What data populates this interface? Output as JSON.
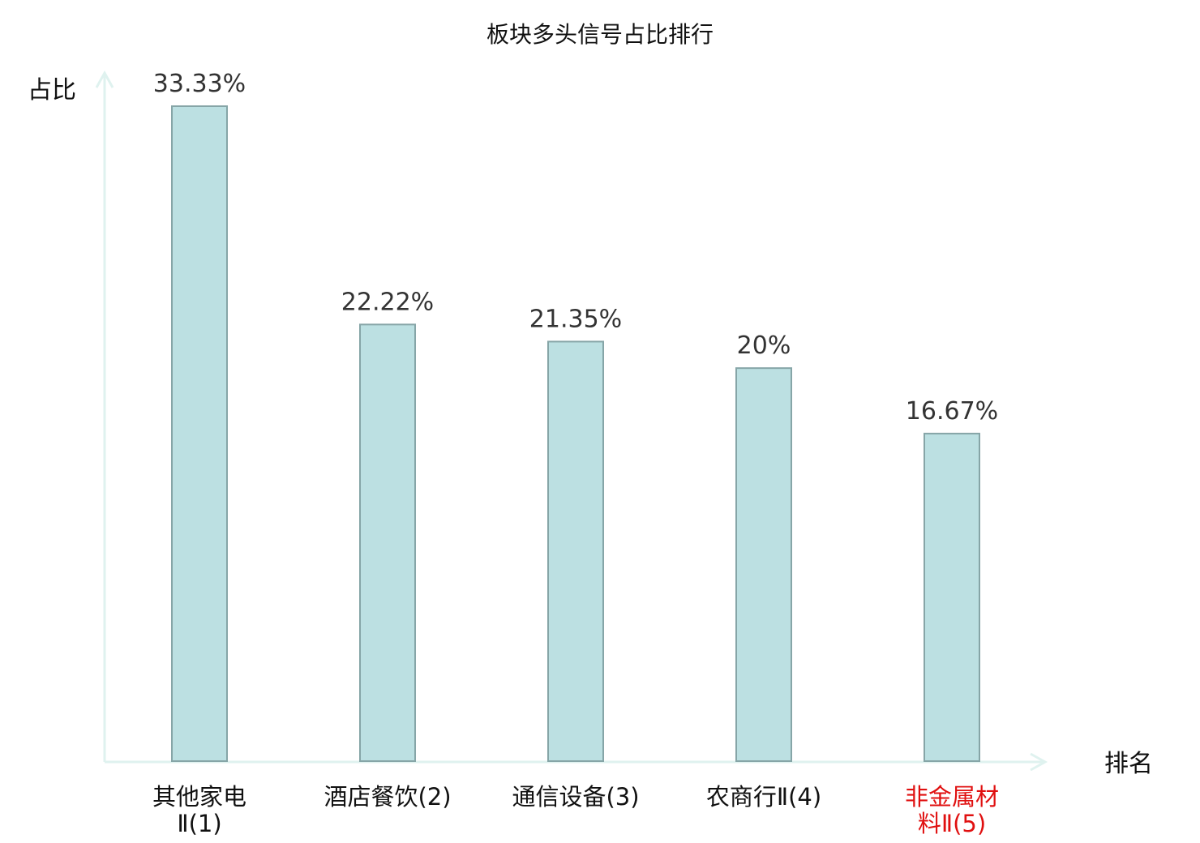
{
  "chart_data": {
    "type": "bar",
    "title": "板块多头信号占比排行",
    "xlabel": "排名",
    "ylabel": "占比",
    "ylim": [
      0,
      33.33
    ],
    "grid": false,
    "legend": "none",
    "categories": [
      {
        "lines": [
          "其他家电",
          "Ⅱ(1)"
        ],
        "highlight": false
      },
      {
        "lines": [
          "酒店餐饮(2)"
        ],
        "highlight": false
      },
      {
        "lines": [
          "通信设备(3)"
        ],
        "highlight": false
      },
      {
        "lines": [
          "农商行Ⅱ(4)"
        ],
        "highlight": false
      },
      {
        "lines": [
          "非金属材",
          "料Ⅱ(5)"
        ],
        "highlight": true
      }
    ],
    "values": [
      33.33,
      22.22,
      21.35,
      20,
      16.67
    ],
    "value_labels": [
      "33.33%",
      "22.22%",
      "21.35%",
      "20%",
      "16.67%"
    ]
  },
  "colors": {
    "bar_fill": "#bce0e2",
    "bar_stroke": "#86a5a7",
    "axis": "#dff2ef",
    "highlight_text": "#e01010"
  }
}
